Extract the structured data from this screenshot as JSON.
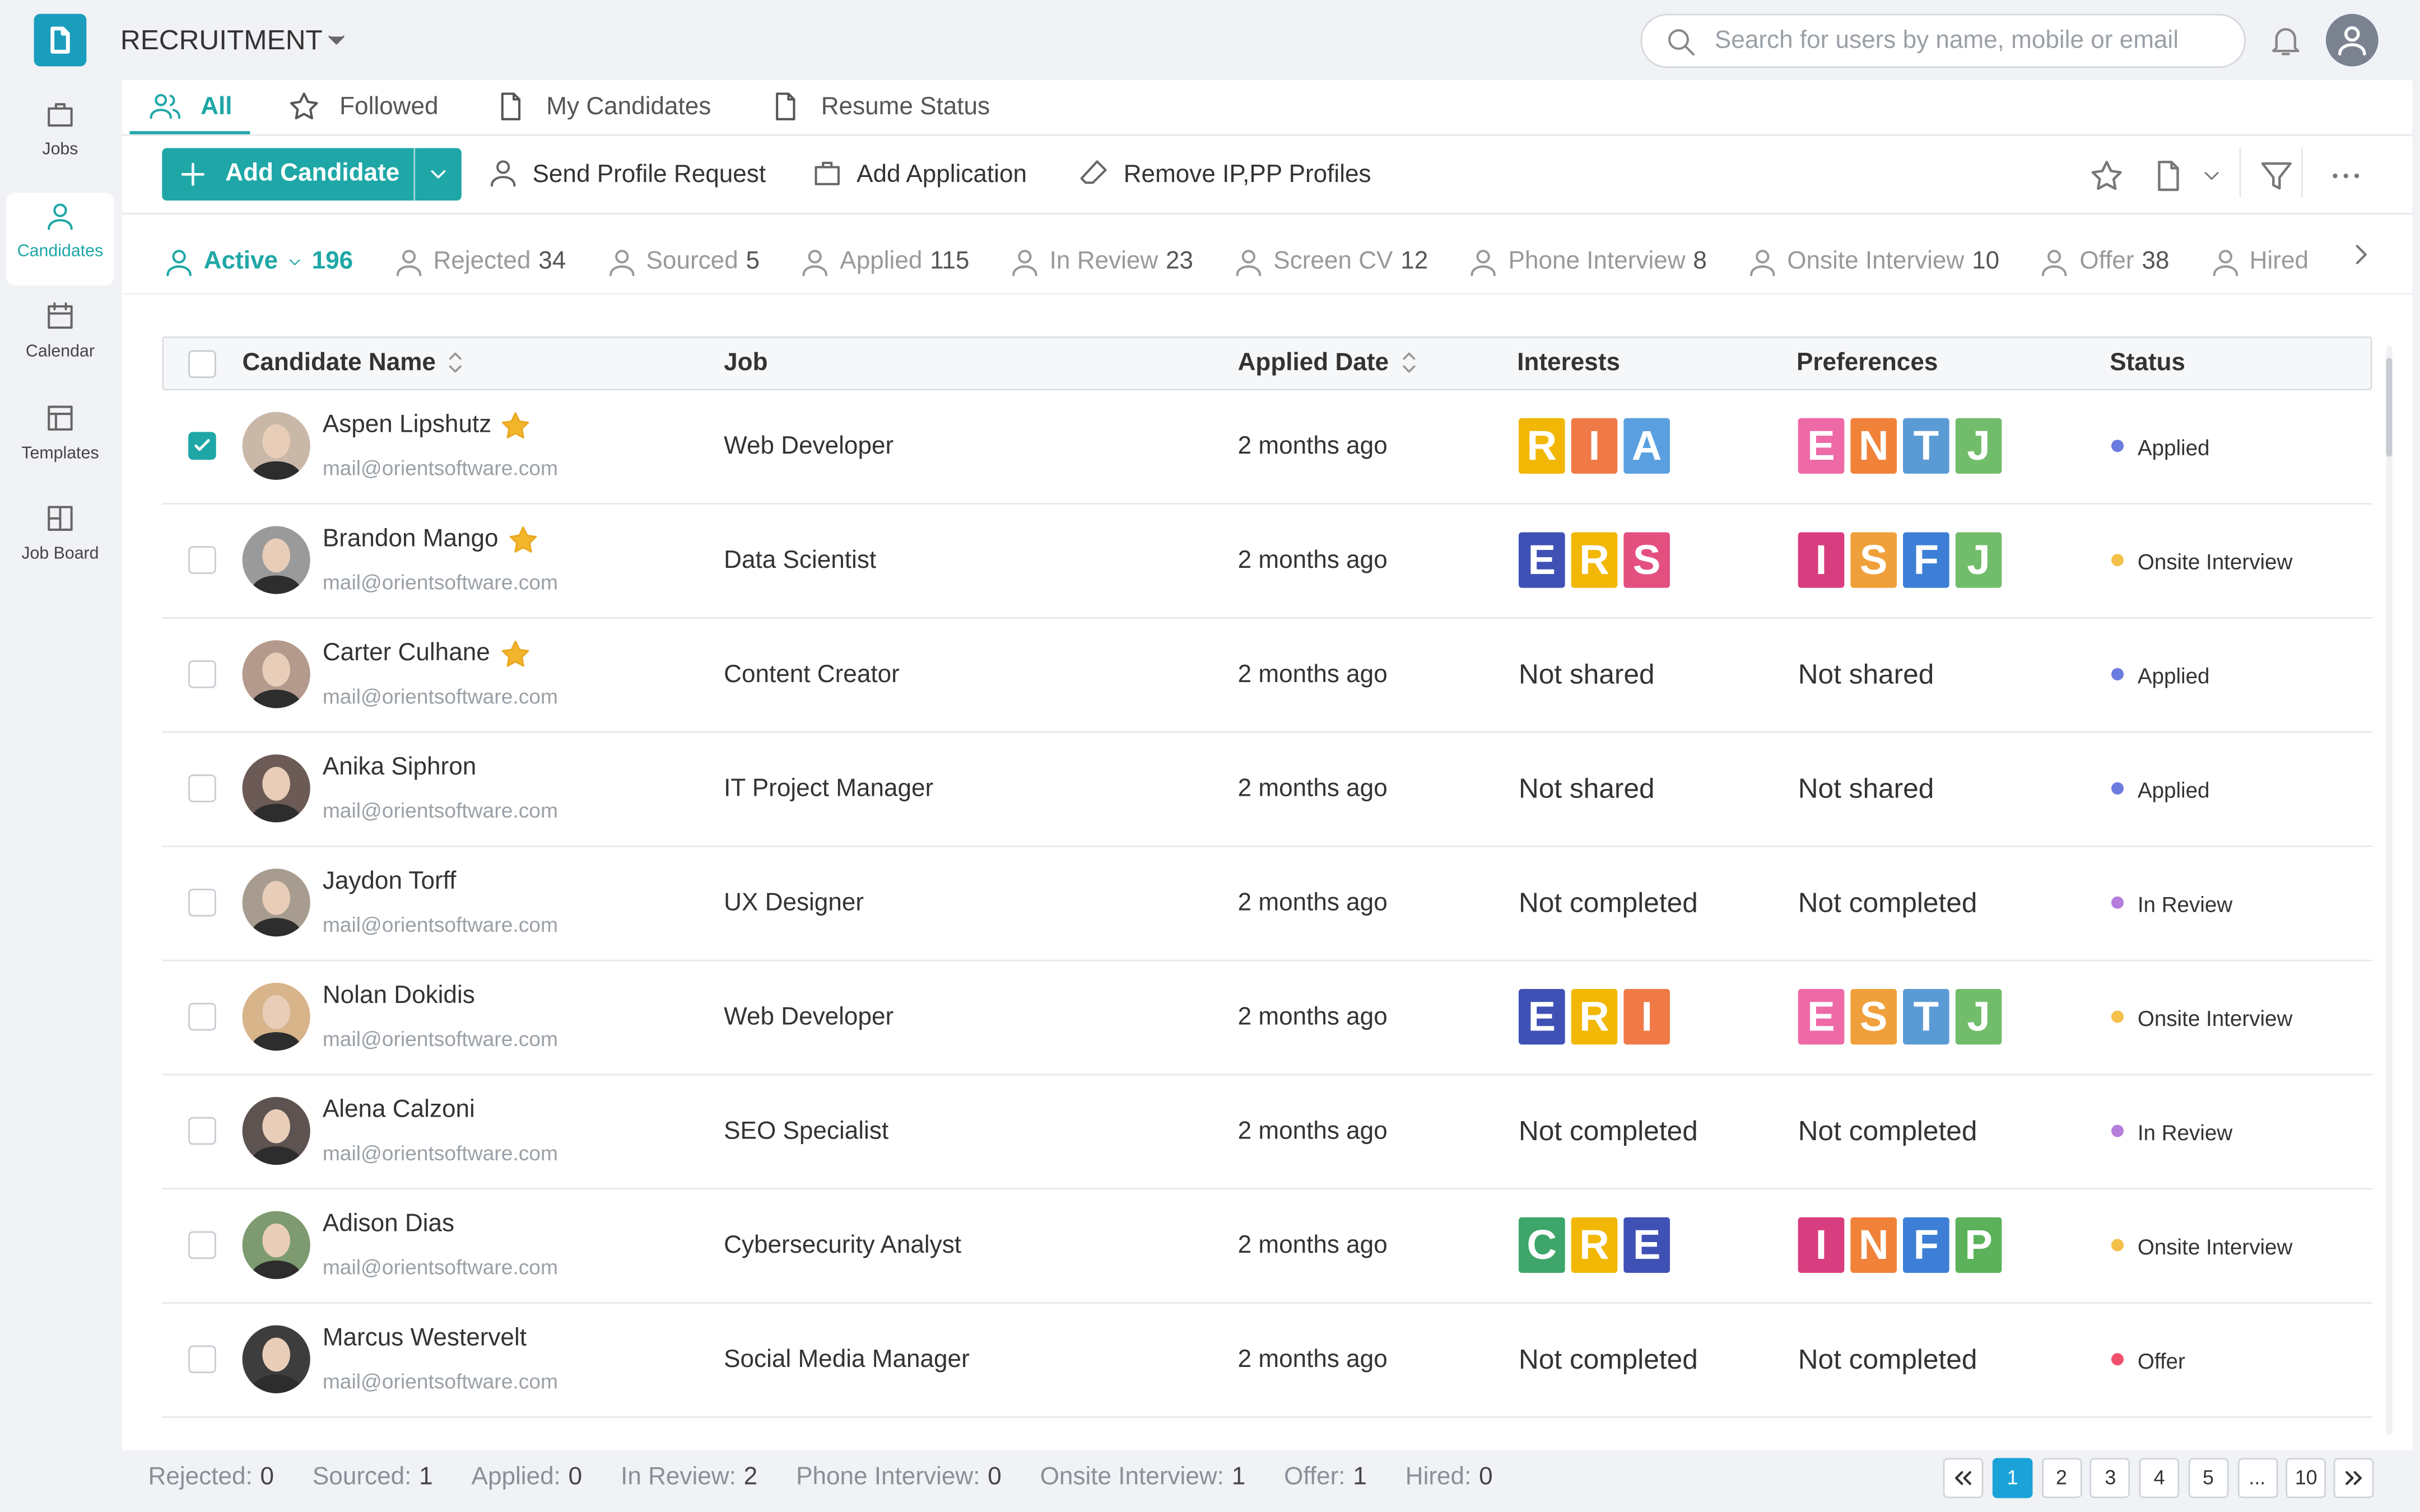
{
  "header": {
    "app": "RECRUITMENT",
    "search_placeholder": "Search for users by name, mobile or email"
  },
  "sidebar": [
    {
      "label": "Jobs",
      "icon": "bag"
    },
    {
      "label": "Candidates",
      "icon": "person",
      "active": true
    },
    {
      "label": "Calendar",
      "icon": "cal"
    },
    {
      "label": "Templates",
      "icon": "tmpl"
    },
    {
      "label": "Job Board",
      "icon": "grid"
    }
  ],
  "view_tabs": [
    {
      "label": "All",
      "icon": "people",
      "active": true
    },
    {
      "label": "Followed",
      "icon": "star"
    },
    {
      "label": "My Candidates",
      "icon": "doc"
    },
    {
      "label": "Resume Status",
      "icon": "doc"
    }
  ],
  "toolbar": {
    "primary": "Add Candidate",
    "actions": [
      {
        "label": "Send Profile Request",
        "icon": "person"
      },
      {
        "label": "Add Application",
        "icon": "bag"
      },
      {
        "label": "Remove IP,PP Profiles",
        "icon": "eraser"
      }
    ]
  },
  "status_tabs": [
    {
      "label": "Active",
      "count": 196,
      "active": true
    },
    {
      "label": "Rejected",
      "count": 34
    },
    {
      "label": "Sourced",
      "count": 5
    },
    {
      "label": "Applied",
      "count": 115
    },
    {
      "label": "In Review",
      "count": 23
    },
    {
      "label": "Screen CV",
      "count": 12
    },
    {
      "label": "Phone Interview",
      "count": 8
    },
    {
      "label": "Onsite Interview",
      "count": 10
    },
    {
      "label": "Offer",
      "count": 38
    },
    {
      "label": "Hired"
    }
  ],
  "table": {
    "columns": [
      "Candidate Name",
      "Job",
      "Applied Date",
      "Interests",
      "Preferences",
      "Status"
    ],
    "rows": [
      {
        "name": "Aspen Lipshutz",
        "email": "mail@orientsoftware.com",
        "starred": true,
        "checked": true,
        "job": "Web Developer",
        "applied": "2 months ago",
        "interests": [
          "R",
          "I",
          "A"
        ],
        "preferences": [
          "E",
          "N",
          "T",
          "J"
        ],
        "status": "Applied"
      },
      {
        "name": "Brandon Mango",
        "email": "mail@orientsoftware.com",
        "starred": true,
        "job": "Data Scientist",
        "applied": "2 months ago",
        "interests": [
          "E",
          "R",
          "S"
        ],
        "preferences": [
          "I",
          "S",
          "F",
          "J"
        ],
        "status": "Onsite Interview"
      },
      {
        "name": "Carter Culhane",
        "email": "mail@orientsoftware.com",
        "starred": true,
        "job": "Content Creator",
        "applied": "2 months ago",
        "interests": "Not shared",
        "preferences": "Not shared",
        "status": "Applied"
      },
      {
        "name": "Anika Siphron",
        "email": "mail@orientsoftware.com",
        "job": "IT Project Manager",
        "applied": "2 months ago",
        "interests": "Not shared",
        "preferences": "Not shared",
        "status": "Applied"
      },
      {
        "name": "Jaydon Torff",
        "email": "mail@orientsoftware.com",
        "job": "UX Designer",
        "applied": "2 months ago",
        "interests": "Not completed",
        "preferences": "Not completed",
        "status": "In Review"
      },
      {
        "name": "Nolan Dokidis",
        "email": "mail@orientsoftware.com",
        "job": "Web Developer",
        "applied": "2 months ago",
        "interests": [
          "E",
          "R",
          "I"
        ],
        "preferences": [
          "E",
          "S",
          "T",
          "J"
        ],
        "status": "Onsite Interview"
      },
      {
        "name": "Alena Calzoni",
        "email": "mail@orientsoftware.com",
        "job": "SEO Specialist",
        "applied": "2 months ago",
        "interests": "Not completed",
        "preferences": "Not completed",
        "status": "In Review"
      },
      {
        "name": "Adison Dias",
        "email": "mail@orientsoftware.com",
        "job": "Cybersecurity Analyst",
        "applied": "2 months ago",
        "interests": [
          "C",
          "R",
          "E"
        ],
        "preferences": [
          "I",
          "N",
          "F",
          "P"
        ],
        "status": "Onsite Interview"
      },
      {
        "name": "Marcus Westervelt",
        "email": "mail@orientsoftware.com",
        "job": "Social Media Manager",
        "applied": "2 months ago",
        "interests": "Not completed",
        "preferences": "Not completed",
        "status": "Offer"
      }
    ]
  },
  "interest_colors": {
    "R": "#f2b705",
    "I": "#ef7a48",
    "A": "#5aa0e0",
    "E": "#3f51b5",
    "S": "#e3507f",
    "C": "#3ea66a"
  },
  "preference_colors": {
    "E": "#ee6aa7",
    "N": "#f0823a",
    "T": "#5b9bd5",
    "J": "#72bd6b",
    "I": "#d83e7f",
    "S": "#f0a03a",
    "F": "#3d7fd6",
    "P": "#5bb25b"
  },
  "status_colors": {
    "Applied": "#6b7be0",
    "Onsite Interview": "#f3c04a",
    "In Review": "#b57edc",
    "Offer": "#f0506e"
  },
  "footer": {
    "stats": [
      {
        "label": "Rejected:",
        "value": 0
      },
      {
        "label": "Sourced:",
        "value": 1
      },
      {
        "label": "Applied:",
        "value": 0
      },
      {
        "label": "In Review:",
        "value": 2
      },
      {
        "label": "Phone Interview:",
        "value": 0
      },
      {
        "label": "Onsite Interview:",
        "value": 1
      },
      {
        "label": "Offer:",
        "value": 1
      },
      {
        "label": "Hired:",
        "value": 0
      }
    ],
    "pages": [
      "1",
      "2",
      "3",
      "4",
      "5",
      "...",
      "10"
    ],
    "current": "1"
  }
}
